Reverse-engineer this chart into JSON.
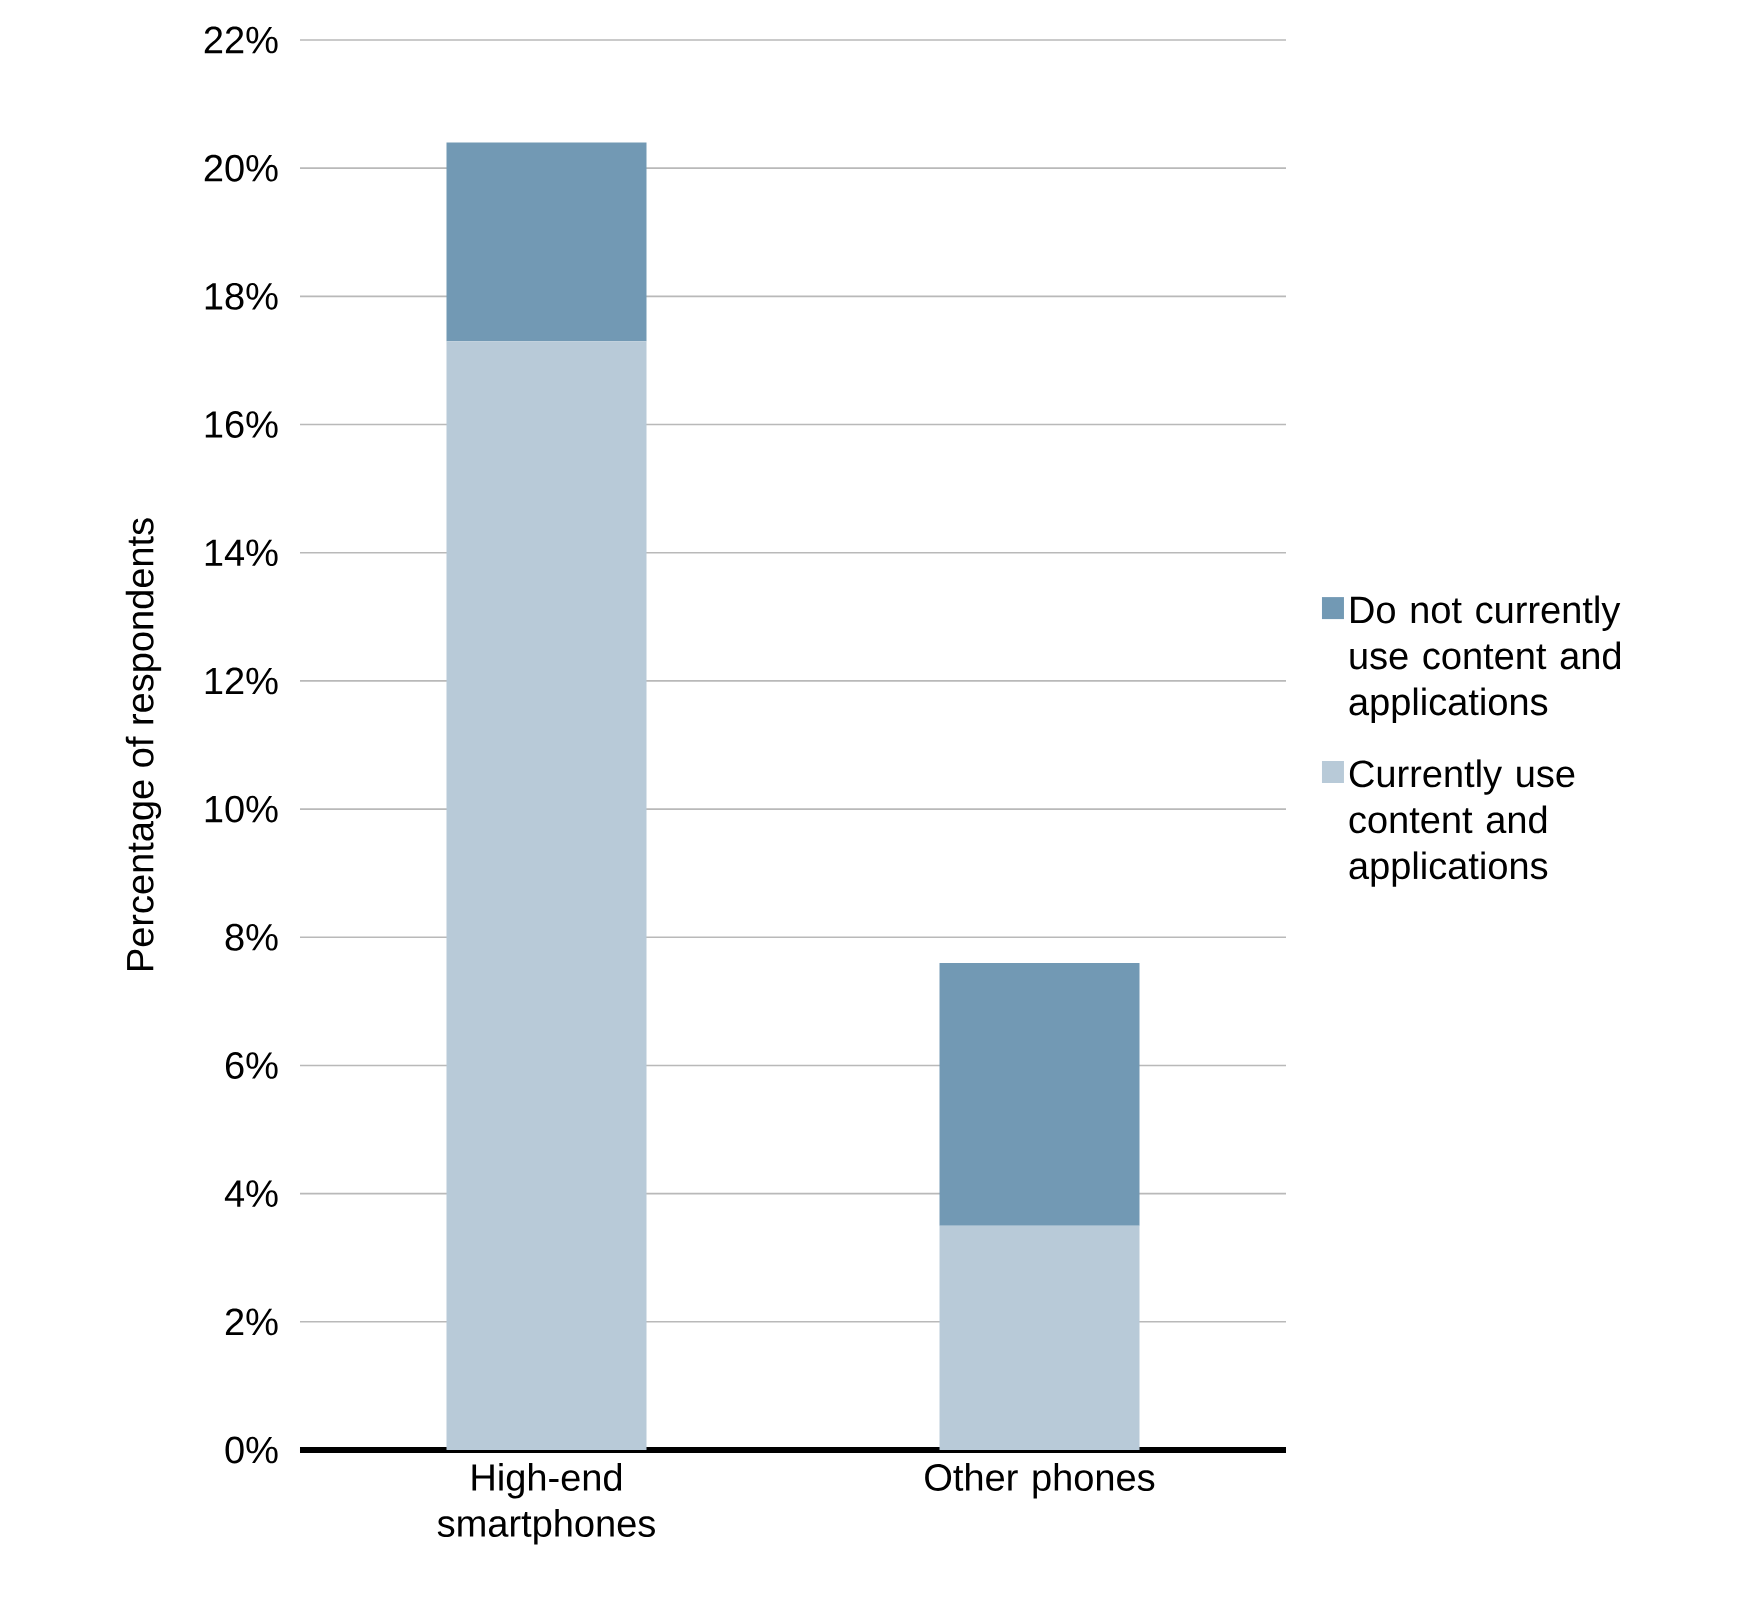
{
  "chart_data": {
    "type": "bar",
    "stacked": true,
    "ylabel": "Percentage of respondents",
    "categories": [
      "High-end smartphones",
      "Other phones"
    ],
    "series": [
      {
        "name": "Currently use content and applications",
        "color": "#b8cad8",
        "values": [
          17.3,
          3.5
        ]
      },
      {
        "name": "Do not currently use content and applications",
        "color": "#7299b4",
        "values": [
          3.1,
          4.1
        ]
      }
    ],
    "ylim": [
      0,
      22
    ],
    "yticks": [
      {
        "value": 0,
        "label": "0%"
      },
      {
        "value": 2,
        "label": "2%"
      },
      {
        "value": 4,
        "label": "4%"
      },
      {
        "value": 6,
        "label": "6%"
      },
      {
        "value": 8,
        "label": "8%"
      },
      {
        "value": 10,
        "label": "10%"
      },
      {
        "value": 12,
        "label": "12%"
      },
      {
        "value": 14,
        "label": "14%"
      },
      {
        "value": 16,
        "label": "16%"
      },
      {
        "value": 18,
        "label": "18%"
      },
      {
        "value": 20,
        "label": "20%"
      },
      {
        "value": 22,
        "label": "22%"
      }
    ],
    "grid": "y",
    "legend": "right"
  }
}
